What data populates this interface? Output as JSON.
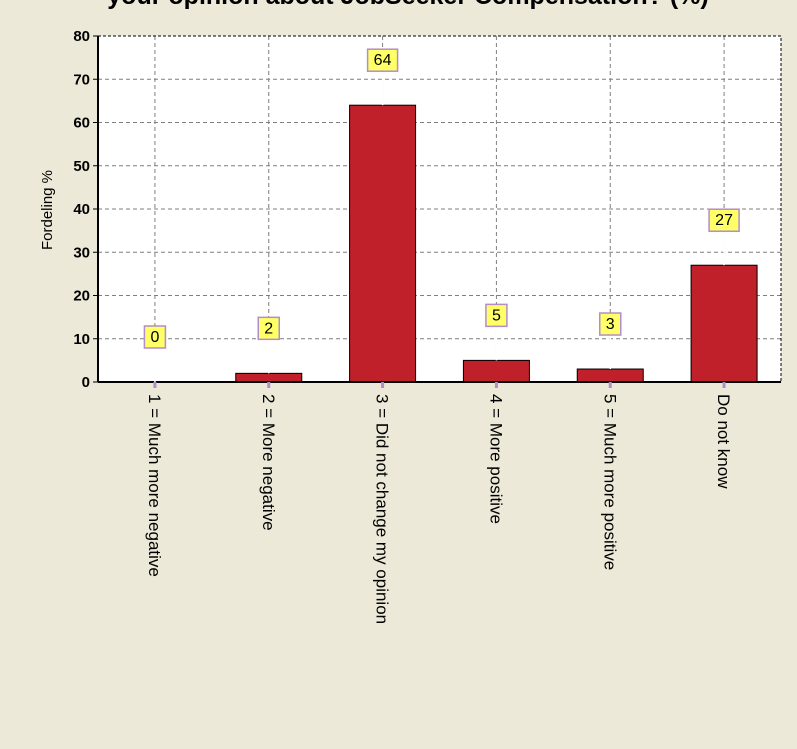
{
  "chart_data": {
    "type": "bar",
    "title": "your opinion about JobSeeker Compensation? (%)",
    "ylabel": "Fordeling %",
    "ylim": [
      0,
      80
    ],
    "yticks": [
      0,
      10,
      20,
      30,
      40,
      50,
      60,
      70,
      80
    ],
    "grid": true,
    "categories": [
      "1 = Much more negative",
      "2 = More negative",
      "3 = Did not change my opinion",
      "4 = More positive",
      "5 = Much more positive",
      "Do not know"
    ],
    "values": [
      0,
      2,
      64,
      5,
      3,
      27
    ],
    "data_labels": [
      "0",
      "2",
      "64",
      "5",
      "3",
      "27"
    ],
    "colors": {
      "bar": "#c0202a",
      "label_bg": "#ffff66",
      "label_border": "#b48cc8",
      "background": "#ece9d8",
      "plot_background": "#ffffff",
      "grid": "#7f7f7f"
    }
  }
}
